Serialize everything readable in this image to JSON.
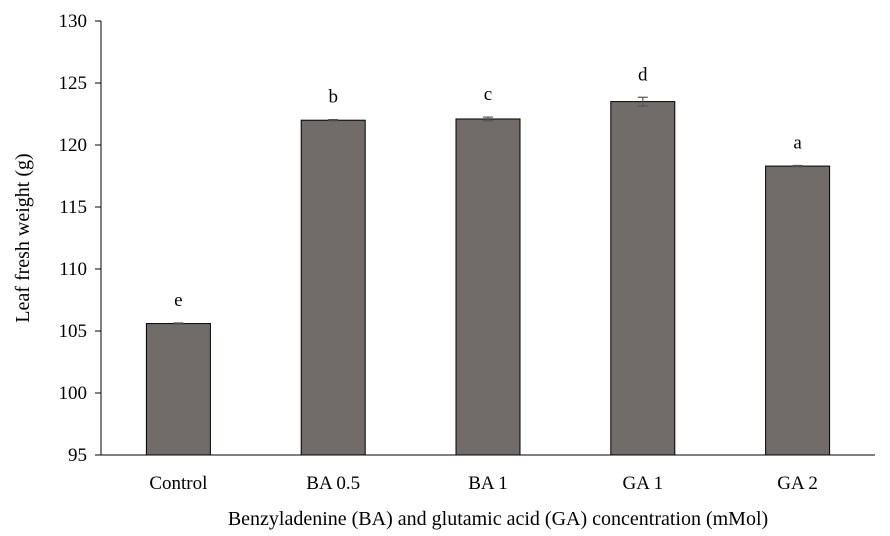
{
  "chart_data": {
    "type": "bar",
    "title": "",
    "xlabel": "Benzyladenine (BA) and glutamic acid (GA) concentration (mMol)",
    "ylabel": "Leaf  fresh weight (g)",
    "ylim": [
      95,
      130
    ],
    "yticks": [
      95,
      100,
      105,
      110,
      115,
      120,
      125,
      130
    ],
    "categories": [
      "Control",
      "BA 0.5",
      "BA 1",
      "GA 1",
      "GA 2"
    ],
    "values": [
      105.6,
      122.0,
      122.1,
      123.5,
      118.3
    ],
    "errors": [
      0.05,
      0.05,
      0.15,
      0.35,
      0.05
    ],
    "significance": [
      "e",
      "b",
      "c",
      "d",
      "a"
    ],
    "bar_color": "#716c6a",
    "grid": false,
    "legend": "none"
  }
}
